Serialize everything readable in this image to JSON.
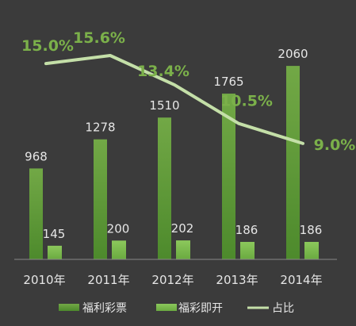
{
  "chart_data": {
    "type": "bar",
    "categories": [
      "2010年",
      "2011年",
      "2012年",
      "2013年",
      "2014年"
    ],
    "series": [
      {
        "name": "福利彩票",
        "type": "bar",
        "values": [
          968,
          1278,
          1510,
          1765,
          2060
        ],
        "labels": [
          "968",
          "1278",
          "1510",
          "1765",
          "2060"
        ],
        "color": "#5e9a3a"
      },
      {
        "name": "福彩即开",
        "type": "bar",
        "values": [
          145,
          200,
          202,
          186,
          186
        ],
        "labels": [
          "145",
          "200",
          "202",
          "186",
          "186"
        ],
        "color": "#7cba4e"
      },
      {
        "name": "占比",
        "type": "line",
        "values": [
          15.0,
          15.6,
          13.4,
          10.5,
          9.0
        ],
        "labels": [
          "15.0%",
          "15.6%",
          "13.4%",
          "10.5%",
          "9.0%"
        ],
        "color": "#c4dfa8"
      }
    ],
    "legend": "bottom",
    "grid": false
  }
}
